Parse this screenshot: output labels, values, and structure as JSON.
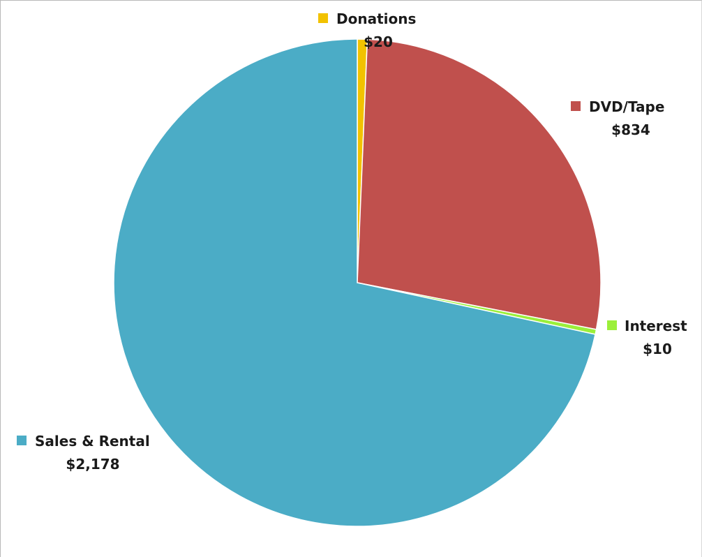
{
  "chart_data": {
    "type": "pie",
    "title": "",
    "slices": [
      {
        "label": "Donations",
        "value": 20,
        "value_label": "$20",
        "color": "#f2c200"
      },
      {
        "label": "DVD/Tape",
        "value": 834,
        "value_label": "$834",
        "color": "#c0504d"
      },
      {
        "label": "Interest",
        "value": 10,
        "value_label": "$10",
        "color": "#9bef3a"
      },
      {
        "label": "Sales & Rental",
        "value": 2178,
        "value_label": "$2,178",
        "color": "#4bacc6"
      }
    ],
    "start": "12 o'clock",
    "direction": "clockwise",
    "legend": "labels-outside"
  }
}
